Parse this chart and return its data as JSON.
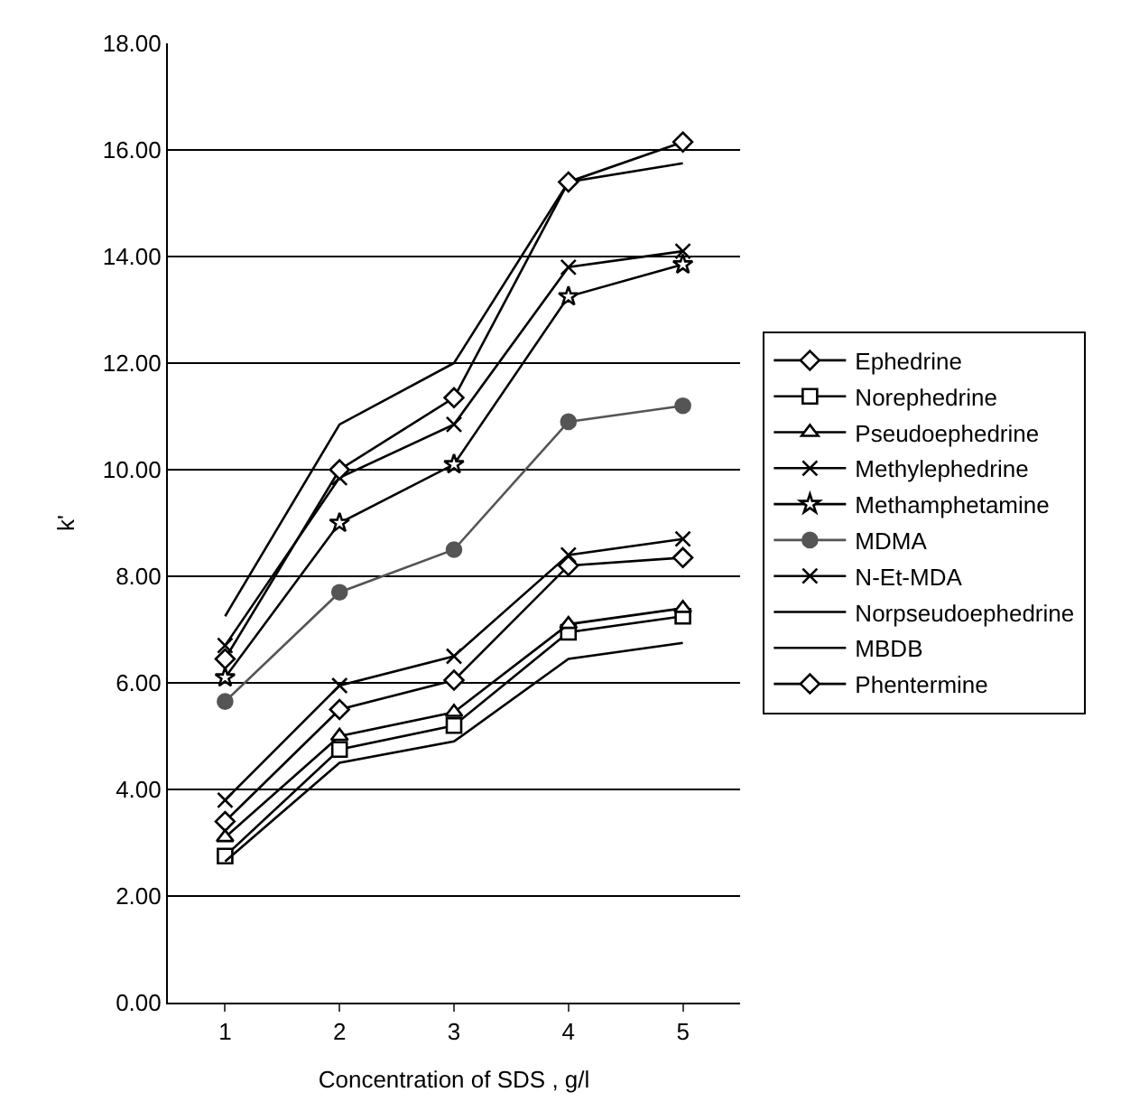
{
  "chart_data": {
    "type": "line",
    "xlabel": "Concentration of SDS , g/l",
    "ylabel": "k'",
    "categories": [
      "1",
      "2",
      "3",
      "4",
      "5"
    ],
    "ylim": [
      0,
      18
    ],
    "yticks": [
      {
        "value": 0,
        "label": "0.00"
      },
      {
        "value": 2,
        "label": "2.00"
      },
      {
        "value": 4,
        "label": "4.00"
      },
      {
        "value": 6,
        "label": "6.00"
      },
      {
        "value": 8,
        "label": "8.00"
      },
      {
        "value": 10,
        "label": "10.00"
      },
      {
        "value": 12,
        "label": "12.00"
      },
      {
        "value": 14,
        "label": "14.00"
      },
      {
        "value": 16,
        "label": "16.00"
      },
      {
        "value": 18,
        "label": "18.00"
      }
    ],
    "grid": "y",
    "legend": "right",
    "line_style": "solid",
    "series": [
      {
        "name": "Ephedrine",
        "color": "#000000",
        "marker": "diamond",
        "values": [
          3.4,
          5.5,
          6.05,
          8.2,
          8.35
        ]
      },
      {
        "name": "Norephedrine",
        "color": "#000000",
        "marker": "square",
        "values": [
          2.75,
          4.75,
          5.2,
          6.95,
          7.25
        ]
      },
      {
        "name": "Pseudoephedrine",
        "color": "#000000",
        "marker": "triangle",
        "values": [
          3.1,
          5.0,
          5.45,
          7.1,
          7.4
        ]
      },
      {
        "name": "Methylephedrine",
        "color": "#000000",
        "marker": "cross",
        "values": [
          3.8,
          5.95,
          6.5,
          8.4,
          8.7
        ]
      },
      {
        "name": "Methamphetamine",
        "color": "#000000",
        "marker": "star",
        "values": [
          6.1,
          9.0,
          10.1,
          13.25,
          13.85
        ]
      },
      {
        "name": "MDMA",
        "color": "#555555",
        "marker": "circle",
        "values": [
          5.65,
          7.7,
          8.5,
          10.9,
          11.2
        ]
      },
      {
        "name": "N-Et-MDA",
        "color": "#000000",
        "marker": "cross",
        "values": [
          6.7,
          9.85,
          10.85,
          13.8,
          14.1
        ]
      },
      {
        "name": "Norpseudoephedrine",
        "color": "#000000",
        "marker": "none",
        "values": [
          2.65,
          4.5,
          4.9,
          6.45,
          6.75
        ]
      },
      {
        "name": "MBDB",
        "color": "#000000",
        "marker": "none",
        "values": [
          7.25,
          10.85,
          12.0,
          15.4,
          15.75
        ]
      },
      {
        "name": "Phentermine",
        "color": "#000000",
        "marker": "diamond",
        "values": [
          6.45,
          10.0,
          11.35,
          15.4,
          16.15
        ]
      }
    ]
  }
}
